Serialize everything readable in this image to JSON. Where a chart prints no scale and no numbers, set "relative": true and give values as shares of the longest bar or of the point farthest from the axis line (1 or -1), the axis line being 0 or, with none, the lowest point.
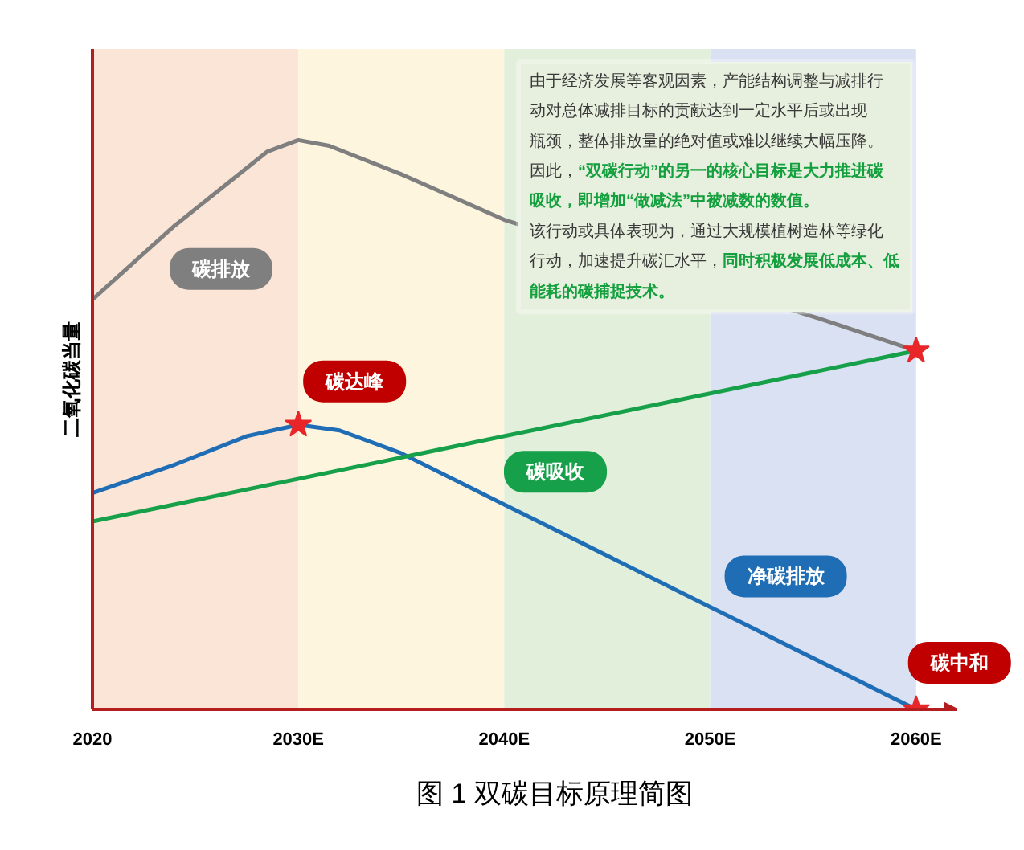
{
  "chart_data": {
    "type": "line",
    "title": "图 1 双碳目标原理简图",
    "ylabel": "二氧化碳当量",
    "relative": true,
    "xlim": [
      2020,
      2062
    ],
    "xticks": [
      2020,
      {
        "value": 2030,
        "label": "2030E"
      },
      {
        "value": 2040,
        "label": "2040E"
      },
      {
        "value": 2050,
        "label": "2050E"
      },
      {
        "value": 2060,
        "label": "2060E"
      }
    ],
    "series": [
      {
        "name": "碳排放",
        "color": "#7f7f7f",
        "x": [
          2020,
          2024,
          2028.5,
          2030,
          2031.5,
          2035,
          2040,
          2055,
          2060
        ],
        "values": [
          0.72,
          0.85,
          0.98,
          1.0,
          0.99,
          0.94,
          0.86,
          0.69,
          0.63
        ]
      },
      {
        "name": "净碳排放",
        "color": "#1f6db5",
        "x": [
          2020,
          2024,
          2027.5,
          2030,
          2032,
          2035,
          2040,
          2050,
          2060
        ],
        "values": [
          0.38,
          0.43,
          0.48,
          0.5,
          0.49,
          0.45,
          0.36,
          0.18,
          0
        ]
      },
      {
        "name": "碳吸收",
        "color": "#17a04a",
        "x": [
          2020,
          2060
        ],
        "values": [
          0.33,
          0.63
        ]
      },
      {
        "type": "scatter",
        "color": "#e8262a",
        "marker": "star",
        "x": [
          2030,
          2060,
          2060
        ],
        "values": [
          0.5,
          0.63,
          0
        ]
      }
    ],
    "bands": [
      {
        "axis": "x",
        "from": 2020,
        "to": 2030,
        "color": "#fbe5d6"
      },
      {
        "axis": "x",
        "from": 2030,
        "to": 2040,
        "color": "#fef5df"
      },
      {
        "axis": "x",
        "from": 2040,
        "to": 2050,
        "color": "#e2efda"
      },
      {
        "axis": "x",
        "from": 2050,
        "to": 2060,
        "color": "#dae1f2"
      }
    ],
    "annotations": [
      {
        "text": "碳达峰",
        "x": 2030,
        "y": 0.5
      },
      {
        "text": "碳中和",
        "x": 2060,
        "y": 0
      },
      "由于经济发展等客观因素，产能结构调整与减排行动对总体减排目标的贡献达到一定水平后或出现瓶颈，整体排放量的绝对值或难以继续大幅压降。因此，",
      "“双碳行动”的另一的核心目标是大力推进碳吸收，即增加“做减法”中被减数的数值。",
      "该行动或具体表现为，通过大规模植树造林等绿化行动，加速提升碳汇水平，",
      "同时积极发展低成本、低能耗的碳捕捉技术。"
    ]
  }
}
